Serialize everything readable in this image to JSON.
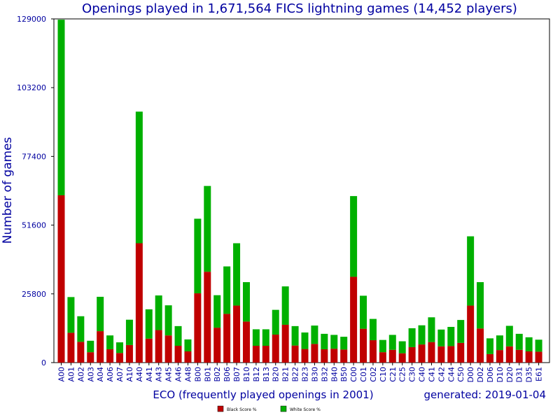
{
  "colors": {
    "black_series": "#c00000",
    "white_series": "#00b000",
    "text": "#0000a0"
  },
  "chart_data": {
    "type": "bar",
    "stacked": true,
    "title": "Openings played in 1,671,564 FICS lightning games (14,452 players)",
    "xlabel": "ECO (frequently played openings in 2001)",
    "ylabel": "Number of games",
    "note": "generated: 2019-01-04",
    "ylim": [
      0,
      129000
    ],
    "yticks": [
      0,
      25800,
      51600,
      77400,
      103200,
      129000
    ],
    "categories": [
      "A00",
      "A01",
      "A02",
      "A03",
      "A04",
      "A06",
      "A07",
      "A10",
      "A40",
      "A41",
      "A43",
      "A45",
      "A46",
      "A48",
      "B00",
      "B01",
      "B02",
      "B06",
      "B07",
      "B10",
      "B12",
      "B13",
      "B20",
      "B21",
      "B22",
      "B23",
      "B30",
      "B32",
      "B40",
      "B50",
      "C00",
      "C01",
      "C02",
      "C10",
      "C21",
      "C25",
      "C30",
      "C40",
      "C41",
      "C42",
      "C44",
      "C50",
      "D00",
      "D02",
      "D06",
      "D10",
      "D20",
      "D31",
      "D35",
      "E61"
    ],
    "series": [
      {
        "name": "Black Score %",
        "values": [
          62800,
          11200,
          7800,
          3900,
          11800,
          5000,
          3600,
          6600,
          44800,
          9000,
          12200,
          10200,
          6300,
          4200,
          26000,
          34100,
          13100,
          18300,
          21400,
          15400,
          6300,
          6300,
          10500,
          14200,
          6400,
          5100,
          7000,
          5000,
          5200,
          4900,
          32200,
          12700,
          8400,
          3900,
          4800,
          3500,
          5800,
          6800,
          7700,
          6100,
          6200,
          7400,
          21400,
          12800,
          3200,
          4700,
          6100,
          4800,
          4200,
          4100
        ]
      },
      {
        "name": "White Score %",
        "values": [
          65900,
          13400,
          9600,
          4300,
          12900,
          5200,
          4000,
          9500,
          49400,
          11000,
          13000,
          11300,
          7400,
          4500,
          28000,
          32200,
          12200,
          17800,
          23400,
          14800,
          6200,
          6200,
          9300,
          14400,
          7300,
          6200,
          6900,
          5800,
          5200,
          4800,
          30300,
          12400,
          8000,
          4600,
          5600,
          4500,
          7100,
          7200,
          9300,
          6300,
          7200,
          8600,
          26000,
          17400,
          5900,
          5500,
          7700,
          6000,
          5300,
          4500
        ]
      }
    ]
  }
}
